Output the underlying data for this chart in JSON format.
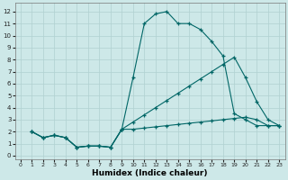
{
  "xlabel": "Humidex (Indice chaleur)",
  "xlim": [
    -0.5,
    23.5
  ],
  "ylim": [
    -0.3,
    12.7
  ],
  "xticks": [
    0,
    1,
    2,
    3,
    4,
    5,
    6,
    7,
    8,
    9,
    10,
    11,
    12,
    13,
    14,
    15,
    16,
    17,
    18,
    19,
    20,
    21,
    22,
    23
  ],
  "yticks": [
    0,
    1,
    2,
    3,
    4,
    5,
    6,
    7,
    8,
    9,
    10,
    11,
    12
  ],
  "bg_color": "#cde8e8",
  "grid_color": "#b0d0d0",
  "line_color": "#006666",
  "curves": [
    {
      "x": [
        1,
        2,
        3,
        4,
        5,
        6,
        7,
        8,
        9,
        10,
        11,
        12,
        13,
        14,
        15,
        16,
        17,
        18,
        19,
        20,
        21,
        22,
        23
      ],
      "y": [
        2.0,
        1.5,
        1.7,
        1.5,
        0.7,
        0.8,
        0.8,
        0.7,
        2.2,
        6.5,
        11.0,
        11.8,
        12.0,
        11.0,
        11.0,
        10.5,
        9.5,
        8.3,
        3.5,
        3.0,
        2.5,
        2.5,
        2.5
      ]
    },
    {
      "x": [
        1,
        2,
        3,
        4,
        5,
        6,
        7,
        8,
        9,
        10,
        11,
        12,
        13,
        14,
        15,
        16,
        17,
        18,
        19,
        20,
        21,
        22,
        23
      ],
      "y": [
        2.0,
        1.5,
        1.7,
        1.5,
        0.7,
        0.8,
        0.8,
        0.7,
        2.2,
        2.8,
        3.4,
        4.0,
        4.6,
        5.2,
        5.8,
        6.4,
        7.0,
        7.6,
        8.2,
        6.5,
        4.5,
        3.0,
        2.5
      ]
    },
    {
      "x": [
        1,
        2,
        3,
        4,
        5,
        6,
        7,
        8,
        9,
        10,
        11,
        12,
        13,
        14,
        15,
        16,
        17,
        18,
        19,
        20,
        21,
        22,
        23
      ],
      "y": [
        2.0,
        1.5,
        1.7,
        1.5,
        0.7,
        0.8,
        0.8,
        0.7,
        2.2,
        2.2,
        2.3,
        2.4,
        2.5,
        2.6,
        2.7,
        2.8,
        2.9,
        3.0,
        3.1,
        3.2,
        3.0,
        2.5,
        2.5
      ]
    }
  ]
}
